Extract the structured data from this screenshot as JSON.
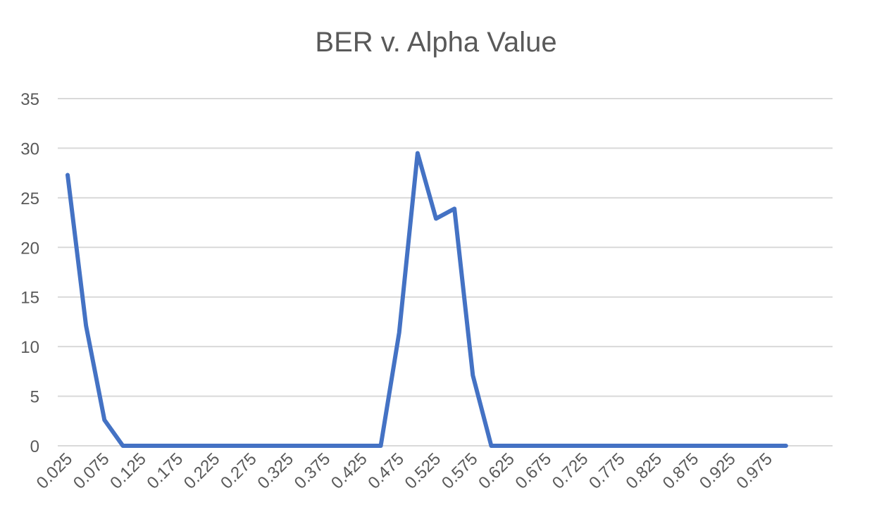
{
  "chart_data": {
    "type": "line",
    "title": "BER v. Alpha Value",
    "xlabel": "",
    "ylabel": "",
    "ylim": [
      0,
      35
    ],
    "yticks": [
      0,
      5,
      10,
      15,
      20,
      25,
      30,
      35
    ],
    "grid": true,
    "legend": "none",
    "series_color": "#4472C4",
    "x": [
      0.025,
      0.05,
      0.075,
      0.1,
      0.125,
      0.15,
      0.175,
      0.2,
      0.225,
      0.25,
      0.275,
      0.3,
      0.325,
      0.35,
      0.375,
      0.4,
      0.425,
      0.45,
      0.475,
      0.5,
      0.525,
      0.55,
      0.575,
      0.6,
      0.625,
      0.65,
      0.675,
      0.7,
      0.725,
      0.75,
      0.775,
      0.8,
      0.825,
      0.85,
      0.875,
      0.9,
      0.925,
      0.95,
      0.975,
      1.0
    ],
    "xtick_labels": [
      "0.025",
      "0.075",
      "0.125",
      "0.175",
      "0.225",
      "0.275",
      "0.325",
      "0.375",
      "0.425",
      "0.475",
      "0.525",
      "0.575",
      "0.625",
      "0.675",
      "0.725",
      "0.775",
      "0.825",
      "0.875",
      "0.925",
      "0.975"
    ],
    "series": [
      {
        "values": [
          27.3,
          12.1,
          2.6,
          0,
          0,
          0,
          0,
          0,
          0,
          0,
          0,
          0,
          0,
          0,
          0,
          0,
          0,
          0,
          11.4,
          29.5,
          22.9,
          23.9,
          7.1,
          0,
          0,
          0,
          0,
          0,
          0,
          0,
          0,
          0,
          0,
          0,
          0,
          0,
          0,
          0,
          0,
          0
        ]
      }
    ]
  }
}
